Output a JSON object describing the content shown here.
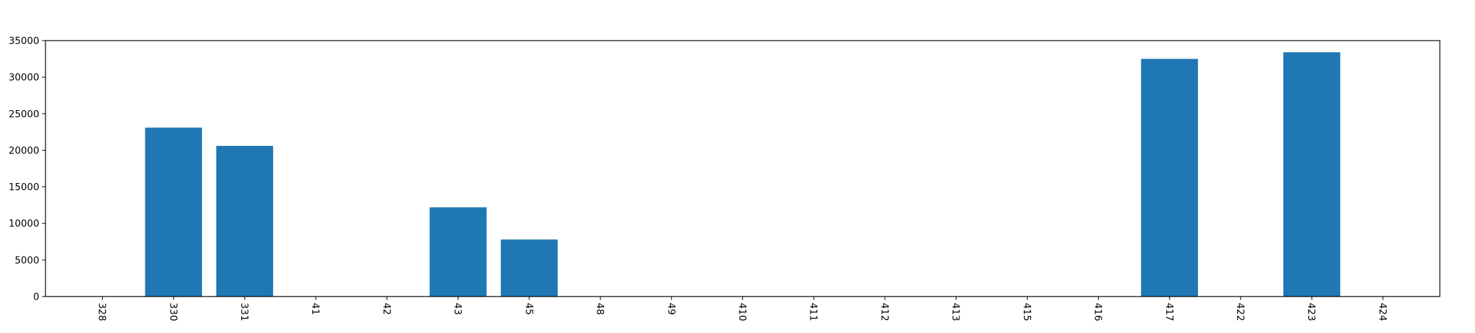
{
  "chart_data": {
    "type": "bar",
    "categories": [
      "328",
      "330",
      "331",
      "41",
      "42",
      "43",
      "45",
      "48",
      "49",
      "410",
      "411",
      "412",
      "413",
      "415",
      "416",
      "417",
      "422",
      "423",
      "424"
    ],
    "values": [
      0,
      23100,
      20600,
      0,
      0,
      12200,
      7800,
      0,
      0,
      0,
      0,
      0,
      0,
      0,
      0,
      32500,
      0,
      33400,
      0
    ],
    "yticks": [
      0,
      5000,
      10000,
      15000,
      20000,
      25000,
      30000,
      35000
    ],
    "ylim": [
      0,
      35000
    ],
    "title": "",
    "xlabel": "",
    "ylabel": "",
    "grid": false,
    "bar_color": "#1f77b4"
  }
}
